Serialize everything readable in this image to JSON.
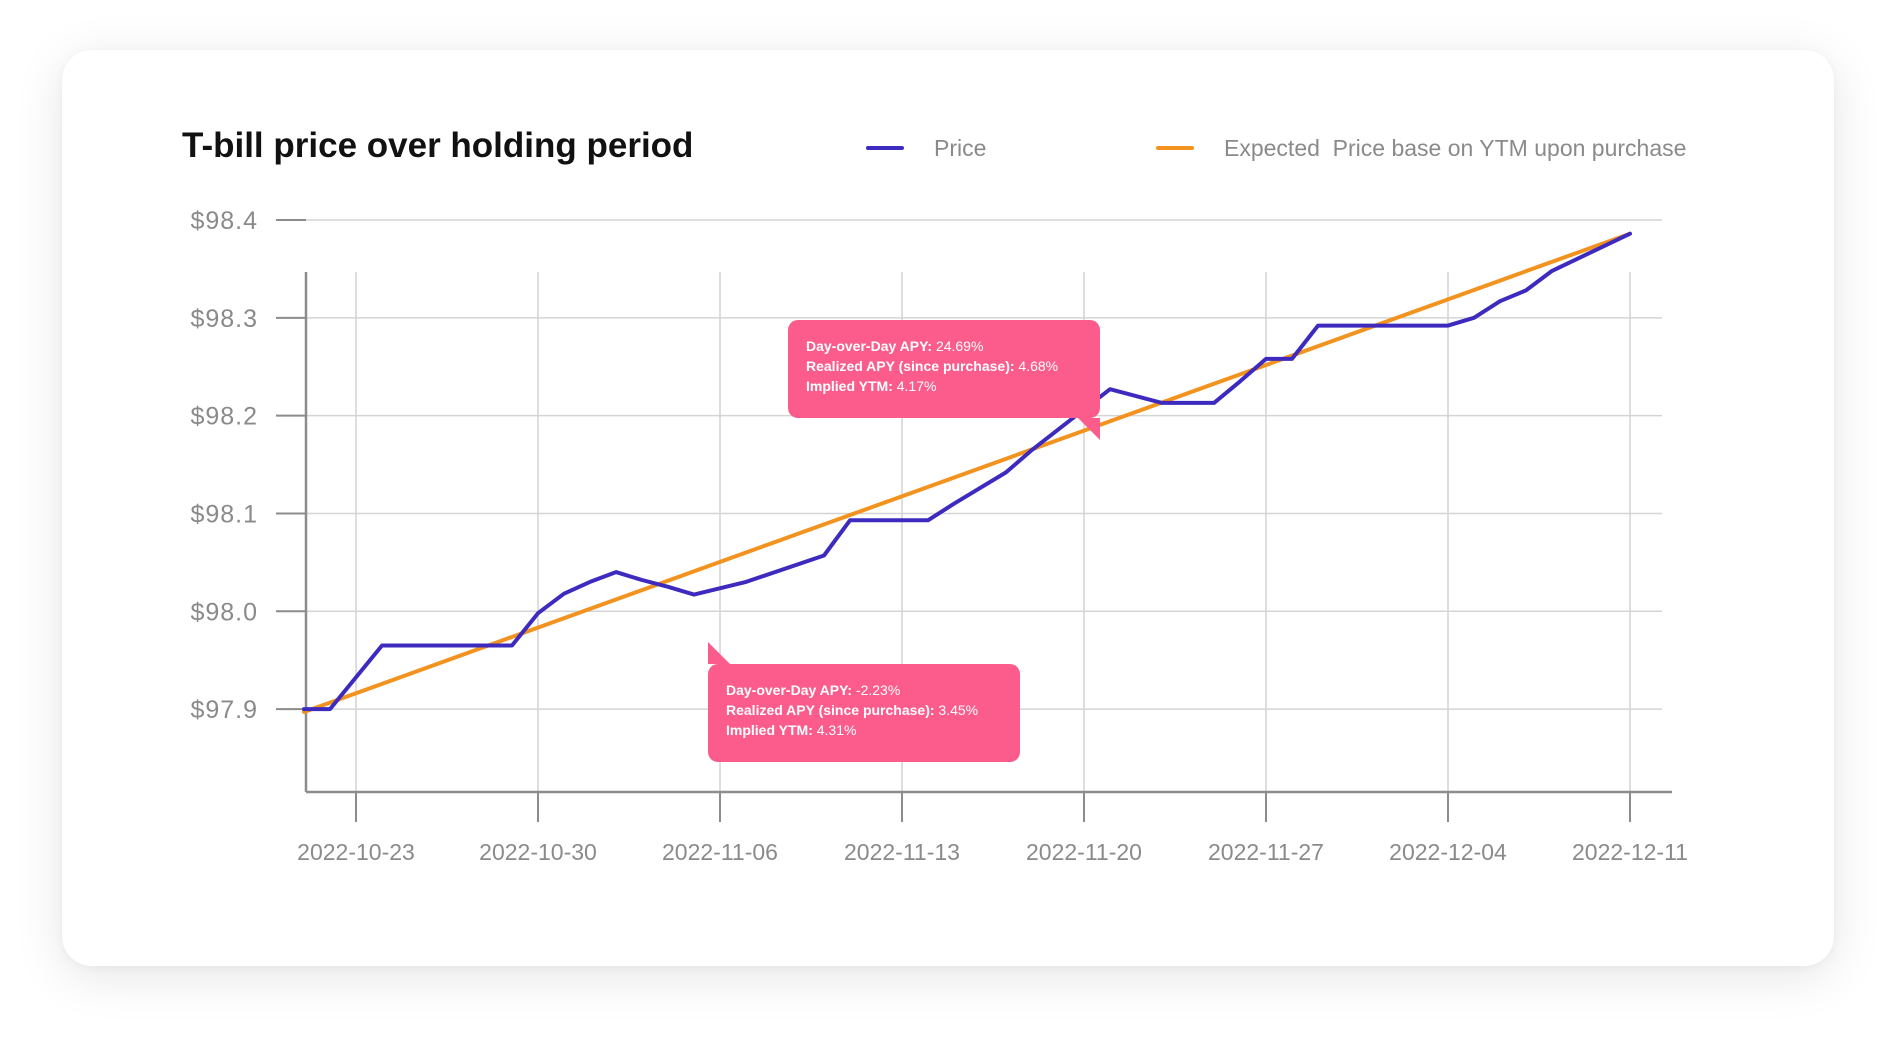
{
  "chart_data": {
    "type": "line",
    "title": "T-bill price over holding period",
    "xlabel": "",
    "ylabel": "",
    "x_ticks": [
      "2022-10-23",
      "2022-10-30",
      "2022-11-06",
      "2022-11-13",
      "2022-11-20",
      "2022-11-27",
      "2022-12-04",
      "2022-12-11"
    ],
    "y_ticks": [
      "$97.9",
      "$98.0",
      "$98.1",
      "$98.2",
      "$98.3",
      "$98.4"
    ],
    "xlim": [
      "2022-10-21",
      "2022-12-11"
    ],
    "ylim": [
      97.85,
      98.4
    ],
    "grid": true,
    "legend_position": "top-right",
    "series": [
      {
        "name": "Price",
        "color": "#3d2bbf",
        "points": [
          [
            "2022-10-21",
            97.9
          ],
          [
            "2022-10-22",
            97.9
          ],
          [
            "2022-10-24",
            97.965
          ],
          [
            "2022-10-27",
            97.965
          ],
          [
            "2022-10-28",
            97.965
          ],
          [
            "2022-10-29",
            97.965
          ],
          [
            "2022-10-30",
            97.998
          ],
          [
            "2022-10-31",
            98.018
          ],
          [
            "2022-11-01",
            98.03
          ],
          [
            "2022-11-02",
            98.04
          ],
          [
            "2022-11-03",
            98.032
          ],
          [
            "2022-11-04",
            98.025
          ],
          [
            "2022-11-05",
            98.017
          ],
          [
            "2022-11-07",
            98.03
          ],
          [
            "2022-11-10",
            98.057
          ],
          [
            "2022-11-11",
            98.093
          ],
          [
            "2022-11-14",
            98.093
          ],
          [
            "2022-11-15",
            98.11
          ],
          [
            "2022-11-17",
            98.142
          ],
          [
            "2022-11-18",
            98.165
          ],
          [
            "2022-11-21",
            98.227
          ],
          [
            "2022-11-22",
            98.22
          ],
          [
            "2022-11-23",
            98.213
          ],
          [
            "2022-11-25",
            98.213
          ],
          [
            "2022-11-26",
            98.235
          ],
          [
            "2022-11-27",
            98.258
          ],
          [
            "2022-11-28",
            98.258
          ],
          [
            "2022-11-29",
            98.292
          ],
          [
            "2022-12-04",
            98.292
          ],
          [
            "2022-12-05",
            98.3
          ],
          [
            "2022-12-06",
            98.317
          ],
          [
            "2022-12-07",
            98.328
          ],
          [
            "2022-12-08",
            98.348
          ],
          [
            "2022-12-11",
            98.386
          ]
        ]
      },
      {
        "name": "Expected  Price base on YTM upon purchase",
        "color": "#f3931f",
        "points": [
          [
            "2022-10-21",
            97.897
          ],
          [
            "2022-12-11",
            98.386
          ]
        ]
      }
    ],
    "annotations": [
      {
        "lines": [
          {
            "label": "Day-over-Day APY:",
            "value": "24.69%"
          },
          {
            "label": "Realized APY (since purchase):",
            "value": "4.68%"
          },
          {
            "label": "Implied YTM:",
            "value": "4.17%"
          }
        ]
      },
      {
        "lines": [
          {
            "label": "Day-over-Day APY:",
            "value": "-2.23%"
          },
          {
            "label": "Realized APY (since purchase):",
            "value": "3.45%"
          },
          {
            "label": "Implied YTM:",
            "value": "4.31%"
          }
        ]
      }
    ]
  }
}
